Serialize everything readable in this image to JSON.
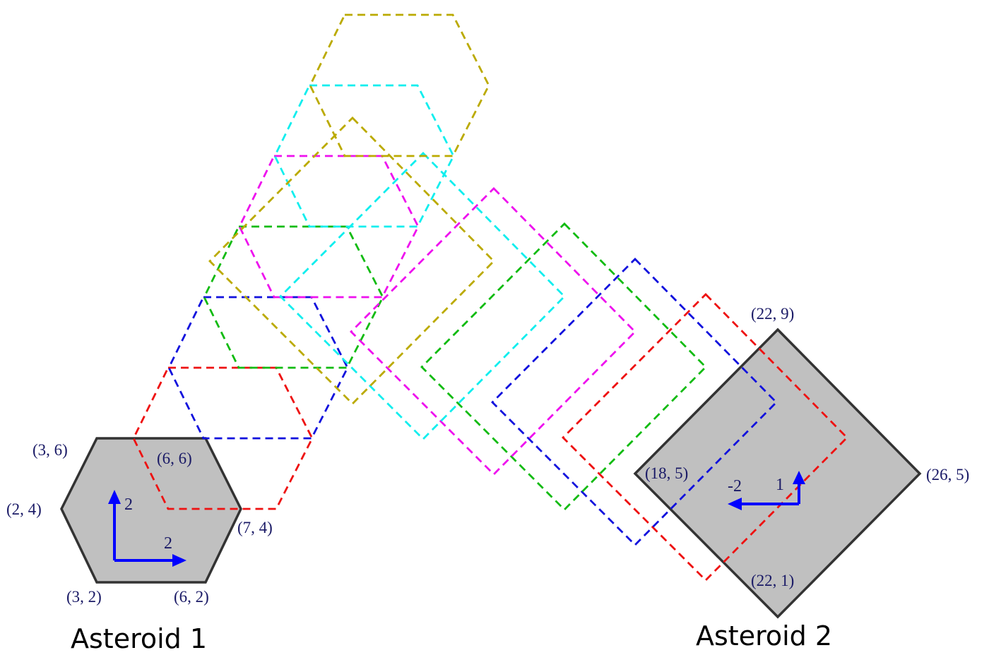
{
  "colors": {
    "asteroid_fill": "#c0c0c0",
    "asteroid_stroke": "#333333",
    "label_text": "#1a1a66",
    "vector": "#0000ff",
    "red": "#ee1111",
    "blue": "#1111dd",
    "green": "#11bb11",
    "magenta": "#ee11ee",
    "cyan": "#11eeee",
    "olive": "#bbaa00"
  },
  "asteroid1": {
    "title": "Asteroid 1",
    "vertex_labels": [
      "(3, 6)",
      "(6, 6)",
      "(2, 4)",
      "(7, 4)",
      "(3, 2)",
      "(6, 2)"
    ],
    "vectors": [
      {
        "label": "2",
        "direction": "up"
      },
      {
        "label": "2",
        "direction": "right"
      }
    ]
  },
  "asteroid2": {
    "title": "Asteroid 2",
    "vertex_labels": [
      "(22, 9)",
      "(18, 5)",
      "(26, 5)",
      "(22, 1)"
    ],
    "vectors": [
      {
        "label": "-2",
        "direction": "left"
      },
      {
        "label": "1",
        "direction": "up"
      }
    ]
  },
  "trail_colors": [
    "red",
    "blue",
    "green",
    "magenta",
    "cyan",
    "olive"
  ]
}
